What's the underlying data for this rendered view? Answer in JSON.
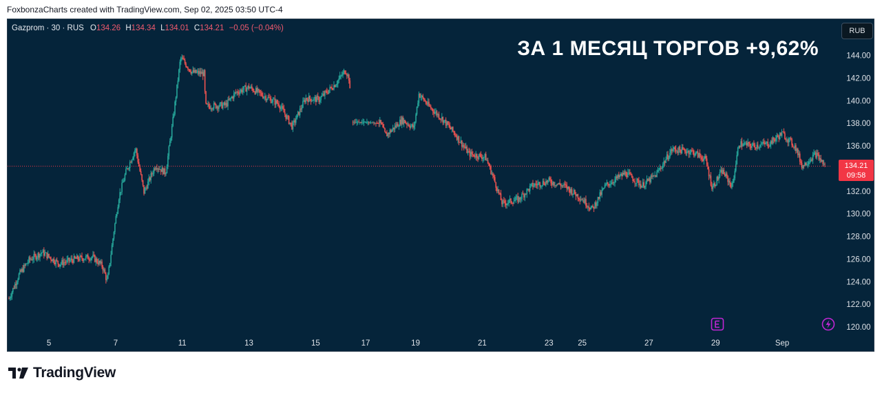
{
  "header": {
    "credit": "FoxbonzaCharts created with TradingView.com, Sep 02, 2025 03:50 UTC-4"
  },
  "legend": {
    "symbol": "Gazprom · 30 · RUS",
    "o_label": "O",
    "o_value": "134.26",
    "h_label": "H",
    "h_value": "134.34",
    "l_label": "L",
    "l_value": "134.01",
    "c_label": "C",
    "c_value": "134.21",
    "change": "−0.05 (−0.04%)"
  },
  "headline": "ЗА 1 МЕСЯЦ ТОРГОВ +9,62%",
  "currency_button": "RUB",
  "price_tag": {
    "price": "134.21",
    "countdown": "09:58"
  },
  "branding": {
    "logo_text": "TradingView"
  },
  "icons": {
    "earnings": "earnings-icon",
    "dividend": "lightning-icon"
  },
  "colors": {
    "up": "#26a69a",
    "down": "#ef5350",
    "background": "#05243a",
    "last_price": "#f23645",
    "event": "#c026d3"
  },
  "chart_data": {
    "type": "candlestick",
    "title": "",
    "xlabel": "",
    "ylabel": "",
    "ylim": [
      119.2,
      146.0
    ],
    "yticks": [
      120,
      122,
      124,
      126,
      128,
      130,
      132,
      134,
      136,
      138,
      140,
      142,
      144
    ],
    "ytick_labels": [
      "120.00",
      "122.00",
      "124.00",
      "126.00",
      "128.00",
      "130.00",
      "132.00",
      "134.00",
      "136.00",
      "138.00",
      "140.00",
      "142.00",
      "144.00"
    ],
    "xticks": [
      "5",
      "7",
      "11",
      "13",
      "15",
      "17",
      "19",
      "21",
      "23",
      "25",
      "27",
      "29",
      "Sep"
    ],
    "x_positions": [
      0,
      2,
      4,
      6,
      8,
      9.5,
      11,
      13,
      15,
      16,
      18,
      20,
      22
    ],
    "x_range": [
      -1.2,
      23.3
    ],
    "last_price": 134.21,
    "grid": false,
    "path": [
      [
        -1.2,
        122.5
      ],
      [
        -0.9,
        124.6
      ],
      [
        -0.6,
        125.9
      ],
      [
        -0.2,
        126.6
      ],
      [
        0.3,
        125.6
      ],
      [
        0.8,
        126.0
      ],
      [
        1.3,
        126.2
      ],
      [
        1.6,
        125.4
      ],
      [
        1.75,
        124.0
      ],
      [
        1.95,
        128.5
      ],
      [
        2.1,
        131.5
      ],
      [
        2.3,
        133.6
      ],
      [
        2.6,
        135.8
      ],
      [
        2.85,
        131.9
      ],
      [
        3.2,
        134.3
      ],
      [
        3.5,
        133.6
      ],
      [
        3.7,
        137.8
      ],
      [
        3.95,
        143.8
      ],
      [
        4.3,
        142.5
      ],
      [
        4.65,
        142.4
      ],
      [
        4.7,
        139.5
      ],
      [
        5.3,
        139.6
      ],
      [
        5.6,
        140.7
      ],
      [
        6.0,
        141.2
      ],
      [
        6.4,
        140.5
      ],
      [
        6.9,
        139.7
      ],
      [
        7.3,
        137.7
      ],
      [
        7.7,
        140.2
      ],
      [
        8.1,
        140.1
      ],
      [
        8.6,
        141.5
      ],
      [
        8.9,
        142.7
      ],
      [
        9.0,
        142.0
      ],
      [
        9.1,
        138.1
      ],
      [
        9.5,
        138.1
      ],
      [
        9.95,
        138.0
      ],
      [
        10.1,
        136.9
      ],
      [
        10.6,
        138.3
      ],
      [
        10.95,
        137.6
      ],
      [
        11.1,
        140.6
      ],
      [
        11.4,
        139.5
      ],
      [
        11.8,
        138.4
      ],
      [
        12.2,
        137.0
      ],
      [
        12.6,
        135.3
      ],
      [
        13.1,
        135.0
      ],
      [
        13.3,
        133.5
      ],
      [
        13.6,
        130.9
      ],
      [
        14.1,
        131.3
      ],
      [
        14.5,
        132.5
      ],
      [
        15.0,
        132.9
      ],
      [
        15.5,
        132.4
      ],
      [
        16.0,
        131.3
      ],
      [
        16.3,
        130.4
      ],
      [
        16.7,
        132.5
      ],
      [
        17.3,
        133.6
      ],
      [
        17.8,
        132.5
      ],
      [
        18.2,
        133.4
      ],
      [
        18.7,
        135.7
      ],
      [
        19.3,
        135.5
      ],
      [
        19.7,
        134.8
      ],
      [
        19.9,
        132.3
      ],
      [
        20.2,
        133.8
      ],
      [
        20.5,
        132.4
      ],
      [
        20.7,
        136.2
      ],
      [
        21.1,
        136.0
      ],
      [
        21.6,
        136.2
      ],
      [
        22.0,
        137.1
      ],
      [
        22.4,
        135.9
      ],
      [
        22.6,
        134.2
      ],
      [
        23.0,
        135.3
      ],
      [
        23.3,
        134.21
      ]
    ],
    "gap": [
      9.05,
      9.1
    ]
  }
}
